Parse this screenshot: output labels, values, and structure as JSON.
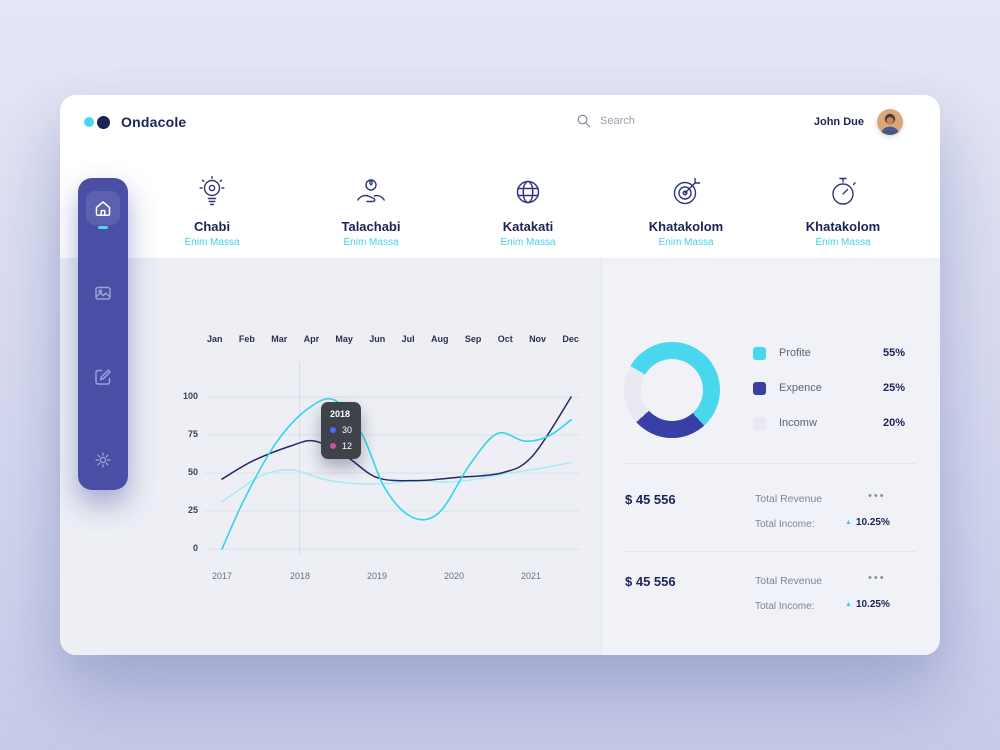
{
  "brand": {
    "name": "Ondacole"
  },
  "header": {
    "search_placeholder": "Search",
    "user_name": "John Due"
  },
  "sidebar": {
    "items": [
      {
        "name": "home",
        "active": true
      },
      {
        "name": "gallery",
        "active": false
      },
      {
        "name": "compose",
        "active": false
      },
      {
        "name": "settings",
        "active": false
      }
    ]
  },
  "nav_features": [
    {
      "title": "Chabi",
      "subtitle": "Enim Massa",
      "icon": "idea-bulb-icon"
    },
    {
      "title": "Talachabi",
      "subtitle": "Enim Massa",
      "icon": "caring-hands-icon"
    },
    {
      "title": "Katakati",
      "subtitle": "Enim Massa",
      "icon": "globe-icon"
    },
    {
      "title": "Khatakolom",
      "subtitle": "Enim Massa",
      "icon": "target-icon"
    },
    {
      "title": "Khatakolom",
      "subtitle": "Enim Massa",
      "icon": "stopwatch-icon"
    }
  ],
  "chart_data": {
    "type": "line",
    "months": [
      "Jan",
      "Feb",
      "Mar",
      "Apr",
      "May",
      "Jun",
      "Jul",
      "Aug",
      "Sep",
      "Oct",
      "Nov",
      "Dec"
    ],
    "years": [
      "2017",
      "2018",
      "2019",
      "2020",
      "2021"
    ],
    "y_ticks": [
      "100",
      "75",
      "50",
      "25",
      "0"
    ],
    "ylim": [
      0,
      100
    ],
    "xlim": [
      2017,
      2021.55
    ],
    "grid": true,
    "series": [
      {
        "name": "secondary-cyan",
        "color": "#a6ebf3",
        "width": 1.4,
        "points": [
          [
            2017,
            31
          ],
          [
            2017.5,
            48
          ],
          [
            2017.9,
            52
          ],
          [
            2018.3,
            46
          ],
          [
            2018.7,
            43
          ],
          [
            2019.1,
            43
          ],
          [
            2019.5,
            45
          ],
          [
            2019.9,
            44
          ],
          [
            2020.3,
            46
          ],
          [
            2020.7,
            50
          ],
          [
            2021.1,
            53
          ],
          [
            2021.5,
            57
          ]
        ]
      },
      {
        "name": "navy",
        "color": "#232a66",
        "width": 1.5,
        "points": [
          [
            2017,
            46
          ],
          [
            2017.4,
            58
          ],
          [
            2017.9,
            68
          ],
          [
            2018.2,
            71
          ],
          [
            2018.6,
            61
          ],
          [
            2019,
            47
          ],
          [
            2019.5,
            45
          ],
          [
            2020,
            47
          ],
          [
            2020.6,
            50
          ],
          [
            2021,
            61
          ],
          [
            2021.5,
            100
          ]
        ]
      },
      {
        "name": "primary-cyan",
        "color": "#35d4eb",
        "width": 1.6,
        "points": [
          [
            2017,
            0
          ],
          [
            2017.3,
            34
          ],
          [
            2017.7,
            70
          ],
          [
            2018.1,
            92
          ],
          [
            2018.45,
            98
          ],
          [
            2018.8,
            76
          ],
          [
            2019.1,
            40
          ],
          [
            2019.45,
            21
          ],
          [
            2019.8,
            24
          ],
          [
            2020.2,
            56
          ],
          [
            2020.55,
            76
          ],
          [
            2020.9,
            71
          ],
          [
            2021.2,
            74
          ],
          [
            2021.5,
            85
          ]
        ]
      }
    ],
    "tooltip": {
      "anchor_year": 2018,
      "year_label": "2018",
      "values": [
        {
          "label": "30",
          "color": "#4a6cf7"
        },
        {
          "label": "12",
          "color": "#cf4fa8"
        }
      ]
    }
  },
  "donut_chart": {
    "type": "pie",
    "start_angle_deg": 300,
    "legend_position": "right",
    "segments": [
      {
        "label": "Profite",
        "display": "55%",
        "value": 55,
        "color": "#49d7ee"
      },
      {
        "label": "Expence",
        "display": "25%",
        "value": 25,
        "color": "#383fa5"
      },
      {
        "label": "Incomw",
        "display": "20%",
        "value": 20,
        "color": "#e9eaf1"
      }
    ]
  },
  "stats_section": {
    "icons": {
      "menu_dots": "•••",
      "trend_up": "▲"
    },
    "groups": [
      {
        "amount": "$ 45 556",
        "label": "Total Revenue",
        "sub_label": "Total Income:",
        "change": "10.25%"
      },
      {
        "amount": "$ 45 556",
        "label": "Total Revenue",
        "sub_label": "Total Income:",
        "change": "10.25%"
      }
    ]
  }
}
